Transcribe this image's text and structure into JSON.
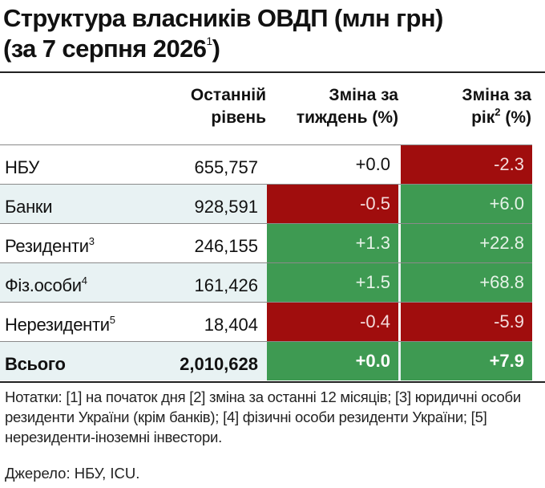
{
  "title": {
    "line1": "Структура власників ОВДП (млн грн)",
    "line2_prefix": "(за 7 серпня 2026",
    "line2_sup": "1",
    "line2_suffix": ")"
  },
  "headers": {
    "level_line1": "Останній",
    "level_line2": "рівень",
    "week_line1": "Зміна за",
    "week_line2": "тиждень (%)",
    "year_line1": "Зміна за",
    "year_line2_prefix": "рік",
    "year_line2_sup": "2",
    "year_line2_suffix": " (%)"
  },
  "rows": [
    {
      "name": "НБУ",
      "sup": "",
      "level": "655,757",
      "week": "+0.0",
      "year": "-2.3",
      "week_status": "neutral",
      "year_status": "negative"
    },
    {
      "name": "Банки",
      "sup": "",
      "level": "928,591",
      "week": "-0.5",
      "year": "+6.0",
      "week_status": "negative",
      "year_status": "positive"
    },
    {
      "name": "Резиденти",
      "sup": "3",
      "level": "246,155",
      "week": "+1.3",
      "year": "+22.8",
      "week_status": "positive",
      "year_status": "positive"
    },
    {
      "name": "Фіз.особи",
      "sup": "4",
      "level": "161,426",
      "week": "+1.5",
      "year": "+68.8",
      "week_status": "positive",
      "year_status": "positive"
    },
    {
      "name": "Нерезиденти",
      "sup": "5",
      "level": "18,404",
      "week": "-0.4",
      "year": "-5.9",
      "week_status": "negative",
      "year_status": "negative"
    }
  ],
  "total": {
    "name": "Всього",
    "level": "2,010,628",
    "week": "+0.0",
    "year": "+7.9",
    "week_status": "positive",
    "year_status": "positive"
  },
  "notes": "Нотатки: [1] на початок дня [2] зміна за останні 12 місяців; [3] юридичні особи  резиденти України (крім банків); [4] фізичні особи резиденти України; [5] нерезиденти-іноземні інвестори.",
  "source": "Джерело: НБУ, ICU.",
  "colors": {
    "negative": "#a00d0d",
    "positive": "#3e9a52",
    "row_tint": "#e8f2f3"
  }
}
